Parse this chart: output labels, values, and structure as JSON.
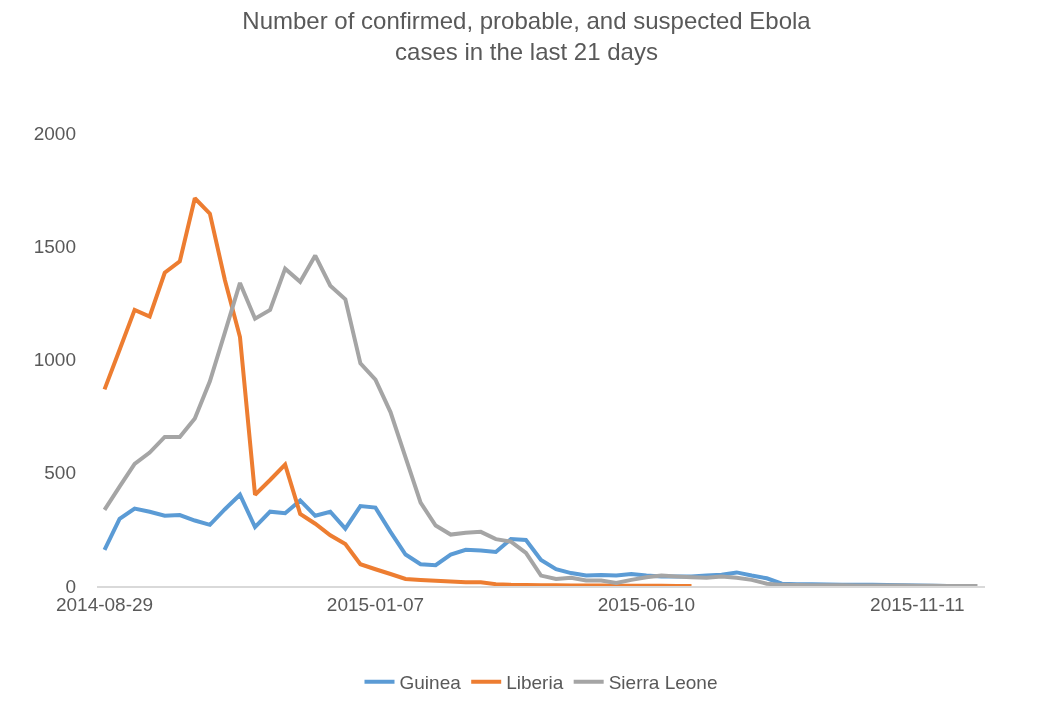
{
  "chart_data": {
    "type": "line",
    "title": "Number of confirmed, probable, and suspected Ebola cases in the last 21 days",
    "categories": [
      "2014-08-29",
      null,
      null,
      null,
      null,
      null,
      null,
      null,
      null,
      null,
      null,
      null,
      null,
      null,
      null,
      null,
      null,
      null,
      "2015-01-07",
      null,
      null,
      null,
      null,
      null,
      null,
      null,
      null,
      null,
      null,
      null,
      null,
      null,
      null,
      null,
      null,
      null,
      "2015-06-10",
      null,
      null,
      null,
      null,
      null,
      null,
      null,
      null,
      null,
      null,
      null,
      null,
      null,
      null,
      null,
      null,
      null,
      "2015-11-11",
      null,
      null,
      null,
      null
    ],
    "series": [
      {
        "name": "Guinea",
        "color": "#5b9bd5",
        "values": [
          160,
          296,
          342,
          328,
          310,
          313,
          289,
          270,
          339,
          403,
          260,
          328,
          321,
          378,
          310,
          328,
          253,
          353,
          346,
          239,
          139,
          96,
          92,
          139,
          160,
          157,
          150,
          207,
          203,
          115,
          74,
          57,
          46,
          49,
          46,
          53,
          46,
          42,
          42,
          42,
          46,
          50,
          60,
          46,
          34,
          10,
          8,
          8,
          7,
          6,
          5,
          5,
          4,
          3,
          2,
          1,
          0,
          null,
          null
        ]
      },
      {
        "name": "Liberia",
        "color": "#ed7d31",
        "values": [
          868,
          1043,
          1219,
          1190,
          1383,
          1433,
          1712,
          1644,
          1350,
          1099,
          403,
          468,
          536,
          318,
          275,
          224,
          185,
          96,
          74,
          53,
          31,
          27,
          23,
          20,
          17,
          17,
          8,
          5,
          4,
          3,
          3,
          2,
          2,
          2,
          1,
          1,
          1,
          1,
          0,
          0,
          null,
          null,
          null,
          null,
          null,
          null,
          null,
          null,
          null,
          null,
          null,
          null,
          null,
          null,
          null,
          null,
          null,
          null,
          null
        ]
      },
      {
        "name": "Sierra Leone",
        "color": "#a5a5a5",
        "values": [
          336,
          439,
          539,
          589,
          658,
          658,
          740,
          904,
          1120,
          1338,
          1180,
          1219,
          1401,
          1343,
          1459,
          1326,
          1266,
          983,
          911,
          768,
          568,
          368,
          267,
          227,
          235,
          239,
          207,
          196,
          146,
          46,
          31,
          36,
          24,
          24,
          13,
          27,
          39,
          46,
          42,
          39,
          36,
          42,
          36,
          27,
          10,
          5,
          4,
          3,
          3,
          3,
          2,
          2,
          2,
          2,
          1,
          1,
          0,
          0,
          0
        ]
      }
    ],
    "ylim": [
      0,
      2000
    ],
    "yticks": [
      0,
      500,
      1000,
      1500,
      2000
    ],
    "legend": "bottom",
    "marker": "none",
    "line_style": "solid"
  }
}
